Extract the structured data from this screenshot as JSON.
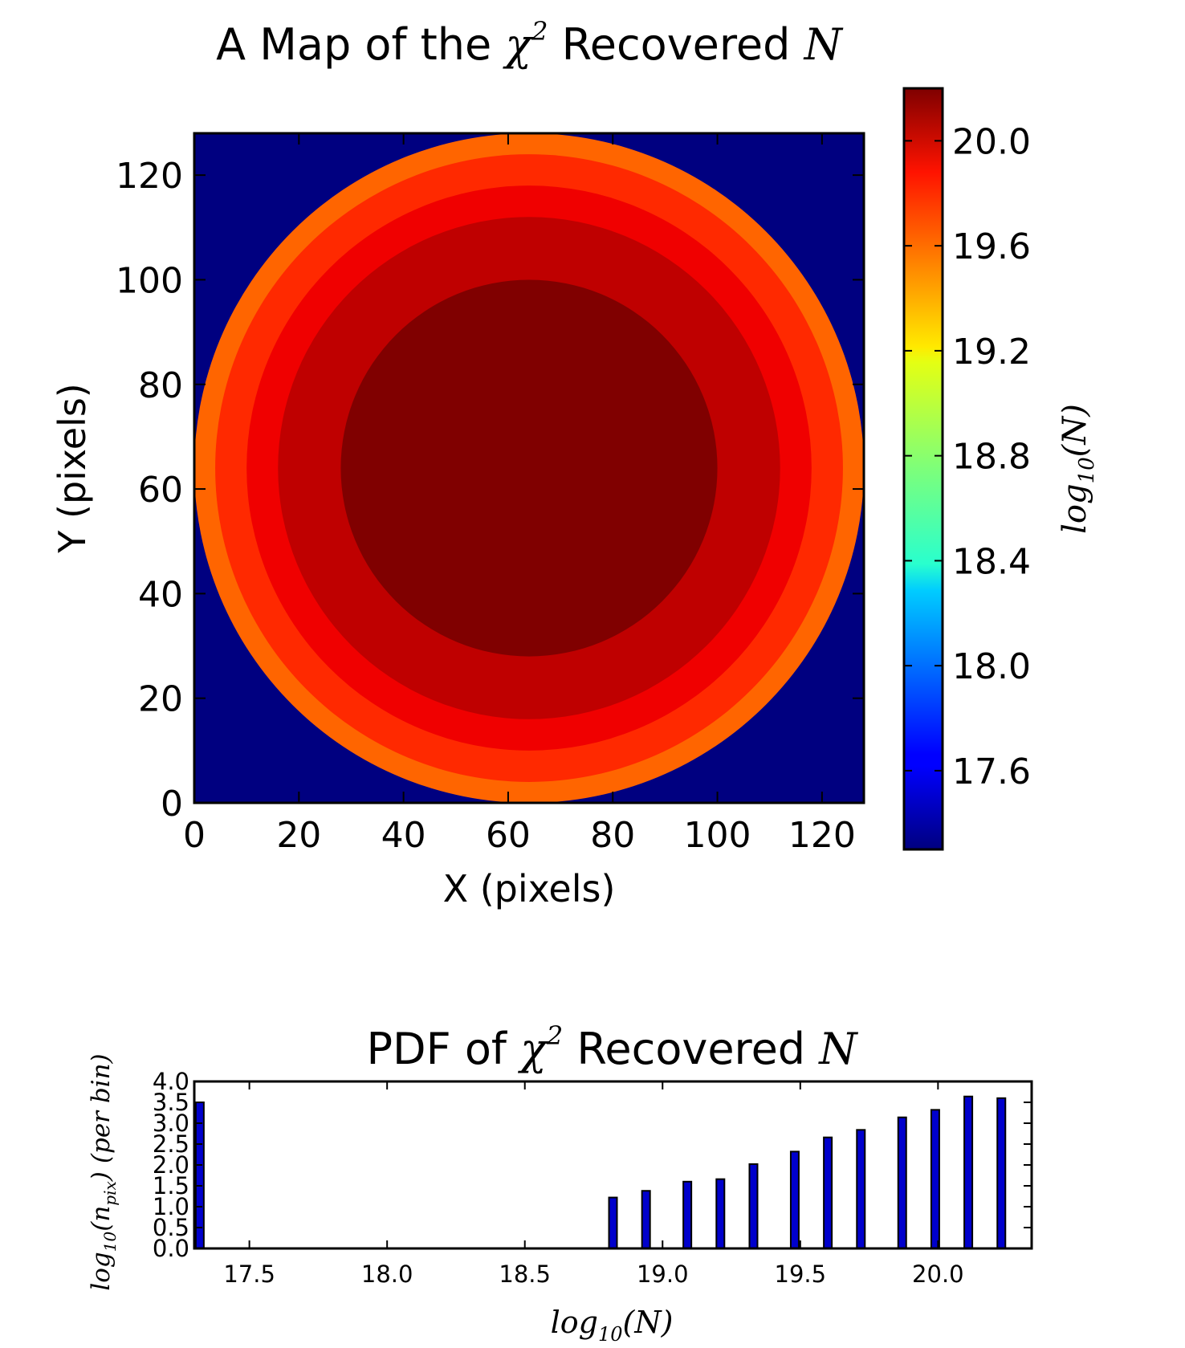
{
  "chart_data": [
    {
      "type": "heatmap",
      "title_prefix": "A Map of the ",
      "title_chi": "χ",
      "title_exp": "2",
      "title_suffix": " Recovered ",
      "title_var": "N",
      "xlabel": "X (pixels)",
      "ylabel": "Y (pixels)",
      "xlim": [
        0,
        128
      ],
      "ylim": [
        0,
        128
      ],
      "xticks": [
        0,
        20,
        40,
        60,
        80,
        100,
        120
      ],
      "yticks": [
        0,
        20,
        40,
        60,
        80,
        100,
        120
      ],
      "colormap": "jet",
      "colorbar": {
        "range": [
          17.3,
          20.2
        ],
        "ticks": [
          "17.6",
          "18.0",
          "18.4",
          "18.8",
          "19.2",
          "19.6",
          "20.0"
        ],
        "label_base": "log",
        "label_sub": "10",
        "label_arg": "(N)"
      },
      "background_value": 17.3,
      "disk": {
        "center": [
          64,
          64
        ],
        "rings": [
          {
            "outer_radius": 64,
            "value": 19.55
          },
          {
            "outer_radius": 60,
            "value": 19.72
          },
          {
            "outer_radius": 54,
            "value": 19.88
          },
          {
            "outer_radius": 48,
            "value": 20.02
          },
          {
            "outer_radius": 36,
            "value": 20.2
          }
        ]
      }
    },
    {
      "type": "bar",
      "title_prefix": "PDF of ",
      "title_chi": "χ",
      "title_exp": "2",
      "title_suffix": " Recovered ",
      "title_var": "N",
      "xlabel_base": "log",
      "xlabel_sub": "10",
      "xlabel_arg": "(N)",
      "ylabel_base": "log",
      "ylabel_sub": "10",
      "ylabel_arg_open": "(n",
      "ylabel_arg_sub": "pix",
      "ylabel_arg_close": ")",
      "ylabel_unit": "(per bin)",
      "xlim": [
        17.3,
        20.34
      ],
      "ylim": [
        0,
        4.0
      ],
      "xticks": [
        "17.5",
        "18.0",
        "18.5",
        "19.0",
        "19.5",
        "20.0"
      ],
      "yticks": [
        "0.0",
        "0.5",
        "1.0",
        "1.5",
        "2.0",
        "2.5",
        "3.0",
        "3.5",
        "4.0"
      ],
      "bar_color": "#0000cc",
      "bins": [
        {
          "x": 17.32,
          "value": 3.5
        },
        {
          "x": 18.82,
          "value": 1.22
        },
        {
          "x": 18.94,
          "value": 1.38
        },
        {
          "x": 19.09,
          "value": 1.6
        },
        {
          "x": 19.21,
          "value": 1.66
        },
        {
          "x": 19.33,
          "value": 2.02
        },
        {
          "x": 19.48,
          "value": 2.32
        },
        {
          "x": 19.6,
          "value": 2.66
        },
        {
          "x": 19.72,
          "value": 2.84
        },
        {
          "x": 19.87,
          "value": 3.14
        },
        {
          "x": 19.99,
          "value": 3.32
        },
        {
          "x": 20.11,
          "value": 3.64
        },
        {
          "x": 20.23,
          "value": 3.6
        }
      ]
    }
  ]
}
